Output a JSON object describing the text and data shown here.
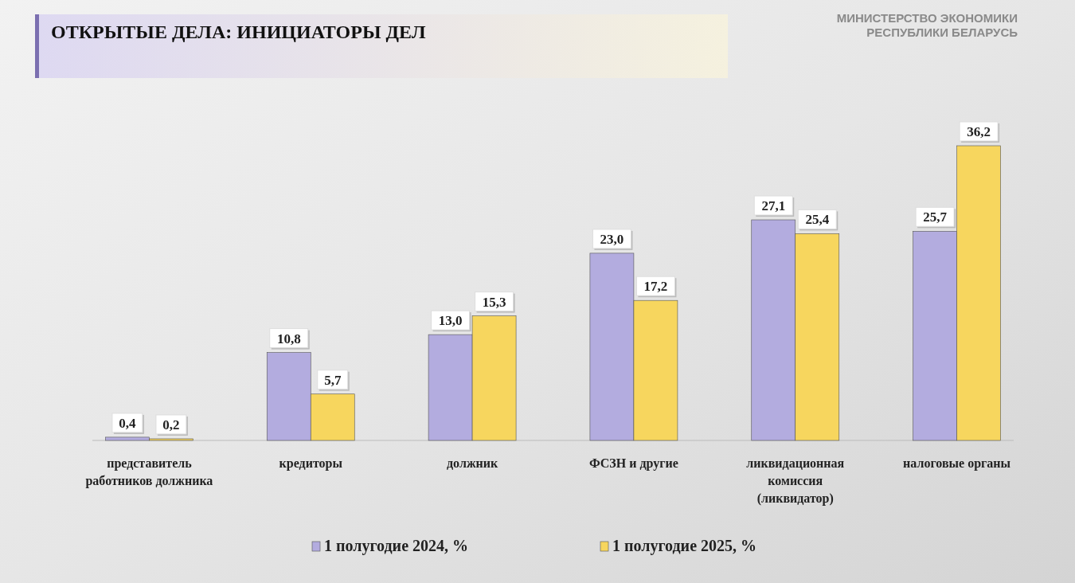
{
  "chart_data": {
    "type": "bar",
    "title": "ОТКРЫТЫЕ ДЕЛА: ИНИЦИАТОРЫ ДЕЛ",
    "annotations": [
      "МИНИСТЕРСТВО ЭКОНОМИКИ\nРЕСПУБЛИКИ БЕЛАРУСЬ"
    ],
    "categories": [
      "представитель работников должника",
      "кредиторы",
      "должник",
      "ФСЗН и другие",
      "ликвидационная комиссия (ликвидатор)",
      "налоговые органы"
    ],
    "series": [
      {
        "name": "1 полугодие 2024, %",
        "color": "#b3acdf",
        "values": [
          0.4,
          10.8,
          13.0,
          23.0,
          27.1,
          25.7
        ],
        "value_labels": [
          "0,4",
          "10,8",
          "13,0",
          "23,0",
          "27,1",
          "25,7"
        ]
      },
      {
        "name": "1 полугодие 2025, %",
        "color": "#f7d65e",
        "values": [
          0.2,
          5.7,
          15.3,
          17.2,
          25.4,
          36.2
        ],
        "value_labels": [
          "0,2",
          "5,7",
          "15,3",
          "17,2",
          "25,4",
          "36,2"
        ]
      }
    ],
    "relative": false,
    "legend": "bottom"
  }
}
